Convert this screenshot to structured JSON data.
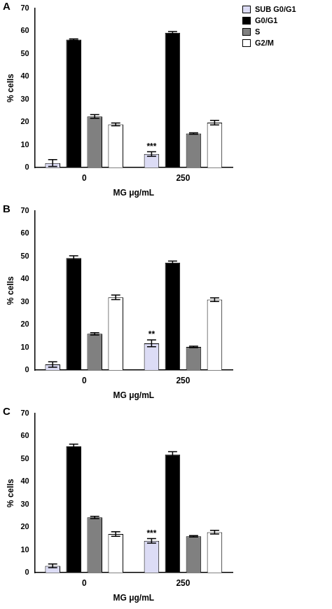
{
  "chart_data": [
    {
      "type": "bar",
      "title": "A",
      "x_label": "MG μg/mL",
      "y_label": "% cells",
      "categories": [
        "0",
        "250"
      ],
      "series": [
        {
          "name": "SUB G0/G1",
          "color": "#dcdcf5",
          "values": [
            2,
            6
          ],
          "errors": [
            1.5,
            1
          ]
        },
        {
          "name": "G0/G1",
          "color": "#000000",
          "values": [
            56.3,
            59.3
          ],
          "errors": [
            0.3,
            0.5
          ]
        },
        {
          "name": "S",
          "color": "#808080",
          "values": [
            22.5,
            15
          ],
          "errors": [
            0.8,
            0.3
          ]
        },
        {
          "name": "G2/M",
          "color": "#ffffff",
          "values": [
            19,
            19.8
          ],
          "errors": [
            0.6,
            1
          ]
        }
      ],
      "annotations": [
        {
          "series": "SUB G0/G1",
          "category": "250",
          "text": "***"
        }
      ],
      "ylim": [
        0,
        70
      ],
      "yticks": [
        0,
        10,
        20,
        30,
        40,
        50,
        60,
        70
      ],
      "grid": false,
      "legend": "right"
    },
    {
      "type": "bar",
      "title": "B",
      "x_label": "MG μg/mL",
      "y_label": "% cells",
      "categories": [
        "0",
        "250"
      ],
      "series": [
        {
          "name": "SUB G0/G1",
          "color": "#dcdcf5",
          "values": [
            2.5,
            11.8
          ],
          "errors": [
            1.2,
            1.5
          ]
        },
        {
          "name": "G0/G1",
          "color": "#000000",
          "values": [
            49.3,
            47.3
          ],
          "errors": [
            1,
            0.7
          ]
        },
        {
          "name": "S",
          "color": "#808080",
          "values": [
            16,
            10.2
          ],
          "errors": [
            0.5,
            0.3
          ]
        },
        {
          "name": "G2/M",
          "color": "#ffffff",
          "values": [
            32,
            31
          ],
          "errors": [
            1,
            0.8
          ]
        }
      ],
      "annotations": [
        {
          "series": "SUB G0/G1",
          "category": "250",
          "text": "**"
        }
      ],
      "ylim": [
        0,
        70
      ],
      "yticks": [
        0,
        10,
        20,
        30,
        40,
        50,
        60,
        70
      ],
      "grid": false
    },
    {
      "type": "bar",
      "title": "C",
      "x_label": "MG μg/mL",
      "y_label": "% cells",
      "categories": [
        "0",
        "250"
      ],
      "series": [
        {
          "name": "SUB G0/G1",
          "color": "#dcdcf5",
          "values": [
            3,
            14
          ],
          "errors": [
            0.8,
            1
          ]
        },
        {
          "name": "G0/G1",
          "color": "#000000",
          "values": [
            55.5,
            52
          ],
          "errors": [
            1,
            1.2
          ]
        },
        {
          "name": "S",
          "color": "#808080",
          "values": [
            24.3,
            16
          ],
          "errors": [
            0.5,
            0.3
          ]
        },
        {
          "name": "G2/M",
          "color": "#ffffff",
          "values": [
            17,
            17.8
          ],
          "errors": [
            1,
            0.8
          ]
        }
      ],
      "annotations": [
        {
          "series": "SUB G0/G1",
          "category": "250",
          "text": "***"
        }
      ],
      "ylim": [
        0,
        70
      ],
      "yticks": [
        0,
        10,
        20,
        30,
        40,
        50,
        60,
        70
      ],
      "grid": false
    }
  ]
}
